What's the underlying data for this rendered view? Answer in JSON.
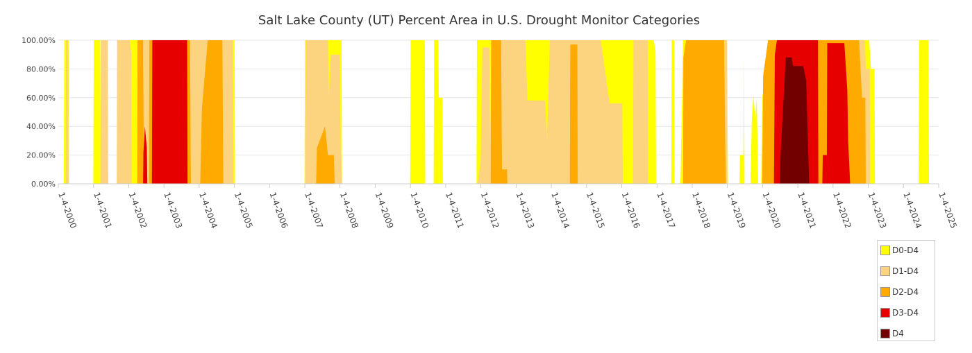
{
  "chart_data": {
    "type": "area",
    "title": "Salt Lake County (UT) Percent Area in U.S. Drought Monitor Categories",
    "xlabel": "",
    "ylabel": "",
    "ylim": [
      0,
      100
    ],
    "xlim": [
      "1-4-2000",
      "1-4-2025"
    ],
    "x_tick_labels": [
      "1-4-2000",
      "1-4-2001",
      "1-4-2002",
      "1-4-2003",
      "1-4-2004",
      "1-4-2005",
      "1-4-2006",
      "1-4-2007",
      "1-4-2008",
      "1-4-2009",
      "1-4-2010",
      "1-4-2011",
      "1-4-2012",
      "1-4-2013",
      "1-4-2014",
      "1-4-2015",
      "1-4-2016",
      "1-4-2017",
      "1-4-2018",
      "1-4-2019",
      "1-4-2020",
      "1-4-2021",
      "1-4-2022",
      "1-4-2023",
      "1-4-2024",
      "1-4-2025"
    ],
    "y_tick_labels": [
      "0.00%",
      "20.00%",
      "40.00%",
      "60.00%",
      "80.00%",
      "100.00%"
    ],
    "y_ticks": [
      0,
      20,
      40,
      60,
      80,
      100
    ],
    "grid": true,
    "legend_position": "bottom-right",
    "series": [
      {
        "name": "D0-D4",
        "color": "#ffff00",
        "points": [
          [
            "2000-01-04",
            0
          ],
          [
            "2000-03-01",
            0
          ],
          [
            "2000-03-06",
            100
          ],
          [
            "2000-04-20",
            100
          ],
          [
            "2000-04-25",
            0
          ],
          [
            "2001-01-01",
            0
          ],
          [
            "2001-01-06",
            100
          ],
          [
            "2001-03-15",
            100
          ],
          [
            "2001-03-20",
            0
          ],
          [
            "2001-11-01",
            0
          ],
          [
            "2001-11-06",
            100
          ],
          [
            "2002-05-01",
            100
          ],
          [
            "2002-12-01",
            100
          ],
          [
            "2004-12-01",
            100
          ],
          [
            "2005-01-05",
            100
          ],
          [
            "2005-01-10",
            0
          ],
          [
            "2007-01-01",
            0
          ],
          [
            "2007-01-06",
            100
          ],
          [
            "2007-03-01",
            100
          ],
          [
            "2008-01-20",
            100
          ],
          [
            "2008-01-25",
            0
          ],
          [
            "2010-01-01",
            0
          ],
          [
            "2010-01-06",
            100
          ],
          [
            "2010-06-01",
            100
          ],
          [
            "2010-06-06",
            0
          ],
          [
            "2010-09-01",
            0
          ],
          [
            "2010-09-06",
            100
          ],
          [
            "2010-10-20",
            100
          ],
          [
            "2010-10-25",
            60
          ],
          [
            "2010-12-01",
            60
          ],
          [
            "2010-12-06",
            0
          ],
          [
            "2011-11-20",
            0
          ],
          [
            "2011-11-25",
            100
          ],
          [
            "2014-12-01",
            100
          ],
          [
            "2016-08-01",
            100
          ],
          [
            "2016-08-06",
            100
          ],
          [
            "2016-10-20",
            100
          ],
          [
            "2016-12-01",
            100
          ],
          [
            "2016-12-20",
            92
          ],
          [
            "2016-12-25",
            0
          ],
          [
            "2017-06-01",
            0
          ],
          [
            "2017-06-06",
            100
          ],
          [
            "2017-06-30",
            100
          ],
          [
            "2017-07-05",
            0
          ],
          [
            "2017-09-01",
            0
          ],
          [
            "2017-09-06",
            5
          ],
          [
            "2017-10-01",
            100
          ],
          [
            "2019-01-01",
            100
          ],
          [
            "2019-01-10",
            0
          ],
          [
            "2019-05-10",
            0
          ],
          [
            "2019-05-15",
            20
          ],
          [
            "2019-06-20",
            20
          ],
          [
            "2019-06-25",
            90
          ],
          [
            "2019-07-01",
            0
          ],
          [
            "2019-09-01",
            0
          ],
          [
            "2019-09-15",
            45
          ],
          [
            "2019-10-01",
            62
          ],
          [
            "2019-10-20",
            45
          ],
          [
            "2019-11-05",
            60
          ],
          [
            "2019-11-20",
            0
          ],
          [
            "2019-12-20",
            0
          ],
          [
            "2020-01-01",
            62
          ],
          [
            "2020-02-01",
            62
          ],
          [
            "2020-03-01",
            100
          ],
          [
            "2023-01-15",
            100
          ],
          [
            "2023-02-01",
            80
          ],
          [
            "2023-03-10",
            80
          ],
          [
            "2023-03-15",
            0
          ],
          [
            "2024-06-10",
            0
          ],
          [
            "2024-06-15",
            100
          ],
          [
            "2024-09-20",
            100
          ],
          [
            "2024-09-25",
            0
          ],
          [
            "2025-01-04",
            0
          ]
        ]
      },
      {
        "name": "D1-D4",
        "color": "#fcd37f",
        "points": [
          [
            "2000-01-04",
            0
          ],
          [
            "2000-03-20",
            0
          ],
          [
            "2000-03-25",
            100
          ],
          [
            "2000-04-15",
            100
          ],
          [
            "2000-04-20",
            0
          ],
          [
            "2001-01-01",
            0
          ],
          [
            "2001-03-15",
            0
          ],
          [
            "2001-03-20",
            100
          ],
          [
            "2001-06-01",
            100
          ],
          [
            "2001-06-05",
            0
          ],
          [
            "2001-09-01",
            0
          ],
          [
            "2001-09-05",
            100
          ],
          [
            "2002-01-15",
            100
          ],
          [
            "2002-02-01",
            90
          ],
          [
            "2002-02-05",
            0
          ],
          [
            "2002-04-01",
            0
          ],
          [
            "2002-04-05",
            100
          ],
          [
            "2004-12-01",
            100
          ],
          [
            "2004-12-20",
            100
          ],
          [
            "2004-12-25",
            0
          ],
          [
            "2007-01-10",
            0
          ],
          [
            "2007-01-15",
            100
          ],
          [
            "2007-09-01",
            100
          ],
          [
            "2007-09-10",
            60
          ],
          [
            "2007-10-01",
            90
          ],
          [
            "2008-01-01",
            90
          ],
          [
            "2008-01-10",
            25
          ],
          [
            "2008-01-25",
            0
          ],
          [
            "2011-11-30",
            0
          ],
          [
            "2012-01-01",
            15
          ],
          [
            "2012-01-20",
            95
          ],
          [
            "2012-04-01",
            95
          ],
          [
            "2012-04-05",
            25
          ],
          [
            "2012-05-01",
            100
          ],
          [
            "2013-04-01",
            100
          ],
          [
            "2013-04-10",
            100
          ],
          [
            "2013-05-01",
            58
          ],
          [
            "2013-11-01",
            58
          ],
          [
            "2013-11-20",
            30
          ],
          [
            "2013-12-20",
            100
          ],
          [
            "2015-06-01",
            100
          ],
          [
            "2015-09-01",
            56
          ],
          [
            "2016-01-10",
            56
          ],
          [
            "2016-01-15",
            0
          ],
          [
            "2016-05-01",
            0
          ],
          [
            "2016-05-05",
            100
          ],
          [
            "2016-10-01",
            100
          ],
          [
            "2016-10-05",
            0
          ],
          [
            "2017-11-01",
            0
          ],
          [
            "2017-11-10",
            100
          ],
          [
            "2019-01-01",
            100
          ],
          [
            "2019-01-05",
            0
          ],
          [
            "2020-01-01",
            0
          ],
          [
            "2020-01-10",
            65
          ],
          [
            "2020-02-01",
            65
          ],
          [
            "2020-03-01",
            100
          ],
          [
            "2022-12-01",
            100
          ],
          [
            "2022-12-10",
            80
          ],
          [
            "2023-01-20",
            80
          ],
          [
            "2023-01-25",
            0
          ],
          [
            "2025-01-04",
            0
          ]
        ]
      },
      {
        "name": "D2-D4",
        "color": "#ffaa00",
        "points": [
          [
            "2000-01-04",
            0
          ],
          [
            "2002-04-01",
            0
          ],
          [
            "2002-04-05",
            100
          ],
          [
            "2002-06-01",
            100
          ],
          [
            "2002-06-10",
            0
          ],
          [
            "2002-08-01",
            0
          ],
          [
            "2002-08-05",
            100
          ],
          [
            "2003-10-01",
            100
          ],
          [
            "2003-10-10",
            0
          ],
          [
            "2004-01-15",
            0
          ],
          [
            "2004-02-01",
            52
          ],
          [
            "2004-04-01",
            100
          ],
          [
            "2004-09-01",
            100
          ],
          [
            "2004-09-10",
            0
          ],
          [
            "2007-05-01",
            0
          ],
          [
            "2007-05-10",
            25
          ],
          [
            "2007-08-01",
            40
          ],
          [
            "2007-09-01",
            20
          ],
          [
            "2007-11-01",
            20
          ],
          [
            "2007-11-10",
            0
          ],
          [
            "2012-04-15",
            0
          ],
          [
            "2012-04-20",
            100
          ],
          [
            "2012-08-01",
            100
          ],
          [
            "2012-08-10",
            10
          ],
          [
            "2012-10-01",
            10
          ],
          [
            "2012-10-05",
            0
          ],
          [
            "2014-07-15",
            0
          ],
          [
            "2014-07-20",
            97
          ],
          [
            "2014-10-01",
            97
          ],
          [
            "2014-10-05",
            0
          ],
          [
            "2017-10-01",
            0
          ],
          [
            "2017-10-05",
            88
          ],
          [
            "2017-11-01",
            100
          ],
          [
            "2018-12-01",
            100
          ],
          [
            "2018-12-10",
            40
          ],
          [
            "2018-12-20",
            0
          ],
          [
            "2020-01-01",
            0
          ],
          [
            "2020-01-10",
            75
          ],
          [
            "2020-03-01",
            100
          ],
          [
            "2022-10-01",
            100
          ],
          [
            "2022-11-01",
            60
          ],
          [
            "2022-12-05",
            60
          ],
          [
            "2022-12-10",
            0
          ],
          [
            "2025-01-04",
            0
          ]
        ]
      },
      {
        "name": "D3-D4",
        "color": "#e60000",
        "points": [
          [
            "2000-01-04",
            0
          ],
          [
            "2002-06-01",
            0
          ],
          [
            "2002-06-05",
            22
          ],
          [
            "2002-06-20",
            40
          ],
          [
            "2002-07-10",
            25
          ],
          [
            "2002-07-15",
            0
          ],
          [
            "2002-09-01",
            0
          ],
          [
            "2002-09-05",
            100
          ],
          [
            "2003-09-01",
            100
          ],
          [
            "2003-09-05",
            0
          ],
          [
            "2020-05-01",
            0
          ],
          [
            "2020-05-10",
            90
          ],
          [
            "2020-06-01",
            100
          ],
          [
            "2021-08-01",
            100
          ],
          [
            "2021-08-05",
            0
          ],
          [
            "2021-09-15",
            0
          ],
          [
            "2021-09-20",
            20
          ],
          [
            "2021-11-01",
            20
          ],
          [
            "2021-11-05",
            98
          ],
          [
            "2022-05-01",
            98
          ],
          [
            "2022-06-01",
            65
          ],
          [
            "2022-06-10",
            30
          ],
          [
            "2022-07-01",
            0
          ],
          [
            "2025-01-04",
            0
          ]
        ]
      },
      {
        "name": "D4",
        "color": "#730000",
        "points": [
          [
            "2000-01-04",
            0
          ],
          [
            "2020-07-01",
            0
          ],
          [
            "2020-07-05",
            15
          ],
          [
            "2020-09-01",
            88
          ],
          [
            "2020-11-01",
            88
          ],
          [
            "2020-11-15",
            82
          ],
          [
            "2021-03-01",
            82
          ],
          [
            "2021-04-01",
            72
          ],
          [
            "2021-05-01",
            0
          ],
          [
            "2025-01-04",
            0
          ]
        ]
      }
    ]
  }
}
